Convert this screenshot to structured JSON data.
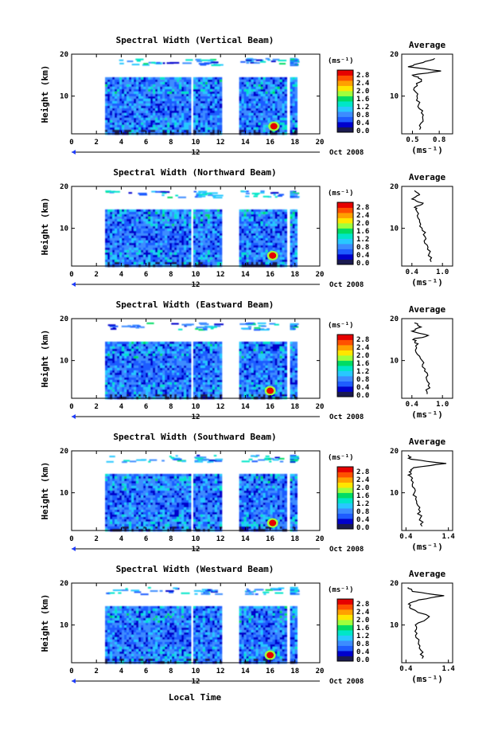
{
  "figure": {
    "xlabel": "Local Time",
    "colorbar_unit": "(ms⁻¹)",
    "colorbar_ticks": [
      "2.8",
      "2.4",
      "2.0",
      "1.6",
      "1.2",
      "0.8",
      "0.4",
      "0.0"
    ],
    "colors": [
      "#1a1a50",
      "#0000cc",
      "#1e5cff",
      "#3c8cff",
      "#28c8ff",
      "#00e6c8",
      "#00dc64",
      "#a0ff3c",
      "#ffe600",
      "#ffa000",
      "#ff5000",
      "#e60000"
    ],
    "x_ticks": [
      "0",
      "2",
      "4",
      "6",
      "8",
      "10",
      "12",
      "14",
      "16",
      "18",
      "20"
    ],
    "day_label": "12",
    "date_label": "Oct 2008",
    "y_ticks": [
      "10",
      "20"
    ],
    "avg_title": "Average",
    "avg_unit": "(ms⁻¹)"
  },
  "chart_data": [
    {
      "type": "heatmap",
      "title": "Spectral Width (Vertical Beam)",
      "xlabel": "Local Time",
      "ylabel": "Height (km)",
      "xlim": [
        0,
        20
      ],
      "ylim": [
        1,
        20
      ],
      "clim": [
        0.0,
        3.0
      ],
      "data_segments": [
        [
          2.7,
          9.6
        ],
        [
          9.8,
          12.0
        ],
        [
          13.5,
          17.2
        ],
        [
          17.6,
          18.0
        ]
      ],
      "high_patch": {
        "x": 16.3,
        "y": 2.8,
        "value": 2.8
      },
      "profile": {
        "title": "Average",
        "xlabel": "(ms⁻¹)",
        "x_ticks": [
          "0.5",
          "0.8"
        ],
        "xlim": [
          0.38,
          0.95
        ],
        "heights": [
          2,
          4,
          6,
          8,
          10,
          12,
          14,
          15,
          16,
          17,
          18,
          19
        ],
        "values": [
          0.58,
          0.62,
          0.6,
          0.57,
          0.55,
          0.52,
          0.6,
          0.5,
          0.82,
          0.45,
          0.62,
          0.75
        ]
      }
    },
    {
      "type": "heatmap",
      "title": "Spectral Width (Northward Beam)",
      "xlabel": "Local Time",
      "ylabel": "Height (km)",
      "xlim": [
        0,
        20
      ],
      "ylim": [
        1,
        20
      ],
      "clim": [
        0.0,
        3.0
      ],
      "data_segments": [
        [
          2.7,
          9.6
        ],
        [
          9.8,
          12.0
        ],
        [
          13.5,
          17.2
        ],
        [
          17.6,
          18.0
        ]
      ],
      "high_patch": {
        "x": 16.2,
        "y": 3.5,
        "value": 2.8
      },
      "profile": {
        "title": "Average",
        "xlabel": "(ms⁻¹)",
        "x_ticks": [
          "0.4",
          "1.0"
        ],
        "xlim": [
          0.2,
          1.2
        ],
        "heights": [
          2,
          4,
          6,
          8,
          10,
          12,
          14,
          15,
          16,
          17,
          18,
          19
        ],
        "values": [
          0.78,
          0.74,
          0.7,
          0.66,
          0.6,
          0.55,
          0.5,
          0.45,
          0.62,
          0.4,
          0.55,
          0.45
        ]
      }
    },
    {
      "type": "heatmap",
      "title": "Spectral Width (Eastward Beam)",
      "xlabel": "Local Time",
      "ylabel": "Height (km)",
      "xlim": [
        0,
        20
      ],
      "ylim": [
        1,
        20
      ],
      "clim": [
        0.0,
        3.0
      ],
      "data_segments": [
        [
          2.7,
          9.6
        ],
        [
          9.8,
          12.0
        ],
        [
          13.5,
          17.2
        ],
        [
          17.6,
          18.0
        ]
      ],
      "high_patch": {
        "x": 16.0,
        "y": 2.8,
        "value": 2.8
      },
      "profile": {
        "title": "Average",
        "xlabel": "(ms⁻¹)",
        "x_ticks": [
          "0.4",
          "1.0"
        ],
        "xlim": [
          0.2,
          1.2
        ],
        "heights": [
          2,
          4,
          6,
          8,
          10,
          12,
          14,
          15,
          16,
          17,
          18,
          19
        ],
        "values": [
          0.7,
          0.72,
          0.68,
          0.66,
          0.6,
          0.48,
          0.52,
          0.42,
          0.72,
          0.4,
          0.58,
          0.45
        ]
      }
    },
    {
      "type": "heatmap",
      "title": "Spectral Width (Southward Beam)",
      "xlabel": "Local Time",
      "ylabel": "Height (km)",
      "xlim": [
        0,
        20
      ],
      "ylim": [
        1,
        20
      ],
      "clim": [
        0.0,
        3.0
      ],
      "data_segments": [
        [
          2.7,
          9.6
        ],
        [
          9.8,
          12.0
        ],
        [
          13.5,
          17.2
        ],
        [
          17.6,
          18.0
        ]
      ],
      "high_patch": {
        "x": 16.2,
        "y": 2.8,
        "value": 2.8
      },
      "profile": {
        "title": "Average",
        "xlabel": "(ms⁻¹)",
        "x_ticks": [
          "0.4",
          "1.4"
        ],
        "xlim": [
          0.3,
          1.5
        ],
        "heights": [
          2,
          4,
          6,
          8,
          10,
          12,
          14,
          15,
          16,
          17,
          18,
          19
        ],
        "values": [
          0.78,
          0.74,
          0.7,
          0.65,
          0.6,
          0.55,
          0.5,
          0.48,
          0.58,
          1.35,
          0.52,
          0.45
        ]
      }
    },
    {
      "type": "heatmap",
      "title": "Spectral Width (Westward Beam)",
      "xlabel": "Local Time",
      "ylabel": "Height (km)",
      "xlim": [
        0,
        20
      ],
      "ylim": [
        1,
        20
      ],
      "clim": [
        0.0,
        3.0
      ],
      "data_segments": [
        [
          2.7,
          9.6
        ],
        [
          9.8,
          12.0
        ],
        [
          13.5,
          17.2
        ],
        [
          17.6,
          18.0
        ]
      ],
      "high_patch": {
        "x": 16.0,
        "y": 2.8,
        "value": 2.8
      },
      "profile": {
        "title": "Average",
        "xlabel": "(ms⁻¹)",
        "x_ticks": [
          "0.4",
          "1.4"
        ],
        "xlim": [
          0.3,
          1.5
        ],
        "heights": [
          2,
          4,
          6,
          8,
          10,
          12,
          14,
          15,
          16,
          17,
          18,
          19
        ],
        "values": [
          0.78,
          0.75,
          0.7,
          0.66,
          0.62,
          0.95,
          0.5,
          0.46,
          0.7,
          1.3,
          0.55,
          0.45
        ]
      }
    }
  ]
}
